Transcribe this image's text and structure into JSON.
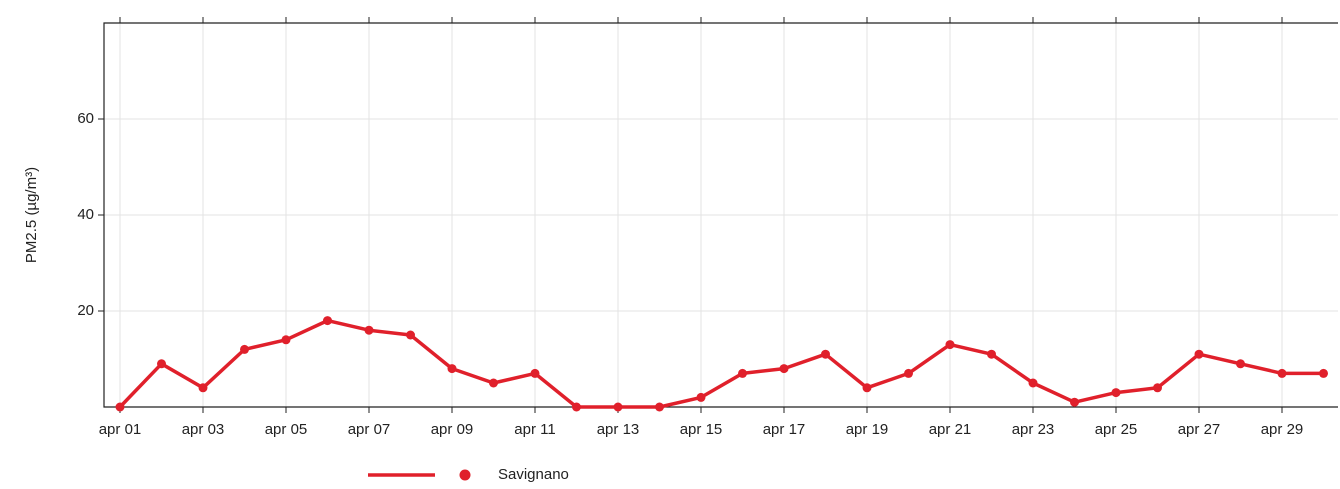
{
  "chart_data": {
    "type": "line",
    "y_label": "PM2.5 (µg/m³)",
    "categories": [
      "apr 01",
      null,
      "apr 03",
      null,
      "apr 05",
      null,
      "apr 07",
      null,
      "apr 09",
      null,
      "apr 11",
      null,
      "apr 13",
      null,
      "apr 15",
      null,
      "apr 17",
      null,
      "apr 19",
      null,
      "apr 21",
      null,
      "apr 23",
      null,
      "apr 25",
      null,
      "apr 27",
      null,
      "apr 29",
      null
    ],
    "series": [
      {
        "name": "Savignano",
        "color": "#e0202b",
        "values": [
          0,
          9,
          4,
          12,
          14,
          18,
          16,
          15,
          8,
          5,
          7,
          0,
          0,
          0,
          2,
          7,
          8,
          11,
          4,
          7,
          13,
          11,
          5,
          1,
          3,
          4,
          11,
          9,
          7,
          7
        ]
      }
    ],
    "ylim": [
      0,
      80
    ],
    "yticks": [
      20,
      40,
      60
    ],
    "grid": true
  }
}
